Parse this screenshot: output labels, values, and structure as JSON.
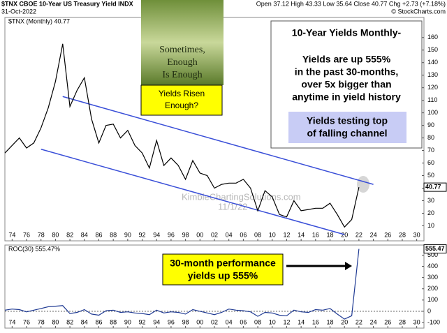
{
  "chart_data": [
    {
      "type": "line",
      "title": "$TNX CBOE 10-Year US Treasury Yield INDX",
      "subtitle": "31-Oct-2022",
      "quote": "Open 37.12 High 43.33 Low 35.64 Close 40.77 Chg +2.73 (+7.18%)",
      "credit": "© StockCharts.com",
      "x": [
        1973,
        1974,
        1975,
        1976,
        1977,
        1978,
        1979,
        1980,
        1981,
        1982,
        1983,
        1984,
        1985,
        1986,
        1987,
        1988,
        1989,
        1990,
        1991,
        1992,
        1993,
        1994,
        1995,
        1996,
        1997,
        1998,
        1999,
        2000,
        2001,
        2002,
        2003,
        2004,
        2005,
        2006,
        2007,
        2008,
        2009,
        2010,
        2011,
        2012,
        2013,
        2014,
        2015,
        2016,
        2017,
        2018,
        2019,
        2020,
        2021,
        2022
      ],
      "series": [
        {
          "name": "$TNX (Monthly) 40.77",
          "color": "#000000",
          "values": [
            68,
            74,
            80,
            72,
            76,
            88,
            104,
            125,
            155,
            105,
            118,
            128,
            95,
            76,
            90,
            91,
            80,
            86,
            74,
            68,
            56,
            78,
            58,
            64,
            58,
            47,
            62,
            52,
            50,
            40,
            43,
            44,
            44,
            47,
            40,
            22,
            38,
            33,
            19,
            17,
            30,
            22,
            23,
            24,
            24,
            28,
            19,
            9,
            15,
            40.77
          ]
        }
      ],
      "channels": [
        {
          "color": "#3a4fd8",
          "x": [
            1981,
            2024
          ],
          "values": [
            113,
            43
          ]
        },
        {
          "color": "#3a4fd8",
          "x": [
            1978,
            2020
          ],
          "values": [
            71,
            3
          ]
        }
      ],
      "xlim": [
        1973,
        2031
      ],
      "xticks": [
        {
          "value": 1974,
          "label": "74"
        },
        {
          "value": 1976,
          "label": "76"
        },
        {
          "value": 1978,
          "label": "78"
        },
        {
          "value": 1980,
          "label": "80"
        },
        {
          "value": 1982,
          "label": "82"
        },
        {
          "value": 1984,
          "label": "84"
        },
        {
          "value": 1986,
          "label": "86"
        },
        {
          "value": 1988,
          "label": "88"
        },
        {
          "value": 1990,
          "label": "90"
        },
        {
          "value": 1992,
          "label": "92"
        },
        {
          "value": 1994,
          "label": "94"
        },
        {
          "value": 1996,
          "label": "96"
        },
        {
          "value": 1998,
          "label": "98"
        },
        {
          "value": 2000,
          "label": "00"
        },
        {
          "value": 2002,
          "label": "02"
        },
        {
          "value": 2004,
          "label": "04"
        },
        {
          "value": 2006,
          "label": "06"
        },
        {
          "value": 2008,
          "label": "08"
        },
        {
          "value": 2010,
          "label": "10"
        },
        {
          "value": 2012,
          "label": "12"
        },
        {
          "value": 2014,
          "label": "14"
        },
        {
          "value": 2016,
          "label": "16"
        },
        {
          "value": 2018,
          "label": "18"
        },
        {
          "value": 2020,
          "label": "20"
        },
        {
          "value": 2022,
          "label": "22"
        },
        {
          "value": 2024,
          "label": "24"
        },
        {
          "value": 2026,
          "label": "26"
        },
        {
          "value": 2028,
          "label": "28"
        },
        {
          "value": 2030,
          "label": "30"
        }
      ],
      "ylim": [
        -2,
        176
      ],
      "yticks": [
        10,
        20,
        30,
        40,
        50,
        60,
        70,
        80,
        90,
        100,
        110,
        120,
        130,
        140,
        150,
        160
      ],
      "cover": [
        "Sometimes,",
        "Enough",
        "Is Enough"
      ],
      "cover_caption": [
        "Yields Risen",
        "Enough?"
      ],
      "box_title": "10-Year Yields Monthly-",
      "box_lines": [
        "Yields are up 555%",
        "in the past 30-months,",
        "over 5x bigger than",
        "anytime in yield history"
      ],
      "box_highlight": [
        "Yields testing top",
        "of falling channel"
      ],
      "watermark": "KimbleChartingSolutions.com",
      "watermark_date": "11/1/22"
    },
    {
      "type": "line",
      "x": [
        1973,
        1974,
        1975,
        1976,
        1977,
        1978,
        1979,
        1980,
        1981,
        1982,
        1983,
        1984,
        1985,
        1986,
        1987,
        1988,
        1989,
        1990,
        1991,
        1992,
        1993,
        1994,
        1995,
        1996,
        1997,
        1998,
        1999,
        2000,
        2001,
        2002,
        2003,
        2004,
        2005,
        2006,
        2007,
        2008,
        2009,
        2010,
        2011,
        2012,
        2013,
        2014,
        2015,
        2016,
        2017,
        2018,
        2019,
        2020,
        2021,
        2022
      ],
      "series": [
        {
          "name": "ROC(30) 555.47%",
          "color": "#1f3a93",
          "values": [
            10,
            20,
            15,
            -5,
            10,
            25,
            40,
            45,
            50,
            -20,
            -10,
            15,
            -25,
            -35,
            5,
            10,
            -10,
            -5,
            -15,
            -20,
            -30,
            10,
            -15,
            -5,
            -10,
            -25,
            15,
            0,
            -15,
            -30,
            -10,
            20,
            10,
            5,
            -5,
            -45,
            -10,
            -15,
            -35,
            -40,
            10,
            -5,
            -10,
            15,
            10,
            25,
            -25,
            -70,
            -40,
            555.47
          ]
        }
      ],
      "xlim": [
        1973,
        2031
      ],
      "xticks": [
        {
          "value": 1974,
          "label": "74"
        },
        {
          "value": 1976,
          "label": "76"
        },
        {
          "value": 1978,
          "label": "78"
        },
        {
          "value": 1980,
          "label": "80"
        },
        {
          "value": 1982,
          "label": "82"
        },
        {
          "value": 1984,
          "label": "84"
        },
        {
          "value": 1986,
          "label": "86"
        },
        {
          "value": 1988,
          "label": "88"
        },
        {
          "value": 1990,
          "label": "90"
        },
        {
          "value": 1992,
          "label": "92"
        },
        {
          "value": 1994,
          "label": "94"
        },
        {
          "value": 1996,
          "label": "96"
        },
        {
          "value": 1998,
          "label": "98"
        },
        {
          "value": 2000,
          "label": "00"
        },
        {
          "value": 2002,
          "label": "02"
        },
        {
          "value": 2004,
          "label": "04"
        },
        {
          "value": 2006,
          "label": "06"
        },
        {
          "value": 2008,
          "label": "08"
        },
        {
          "value": 2010,
          "label": "10"
        },
        {
          "value": 2012,
          "label": "12"
        },
        {
          "value": 2014,
          "label": "14"
        },
        {
          "value": 2016,
          "label": "16"
        },
        {
          "value": 2018,
          "label": "18"
        },
        {
          "value": 2020,
          "label": "20"
        },
        {
          "value": 2022,
          "label": "22"
        },
        {
          "value": 2024,
          "label": "24"
        },
        {
          "value": 2026,
          "label": "26"
        },
        {
          "value": 2028,
          "label": "28"
        },
        {
          "value": 2030,
          "label": "30"
        }
      ],
      "ylim": [
        -150,
        590
      ],
      "yticks": [
        -100,
        0,
        100,
        200,
        300,
        400,
        500
      ],
      "callout": [
        "30-month performance",
        "yields up 555%"
      ]
    }
  ]
}
